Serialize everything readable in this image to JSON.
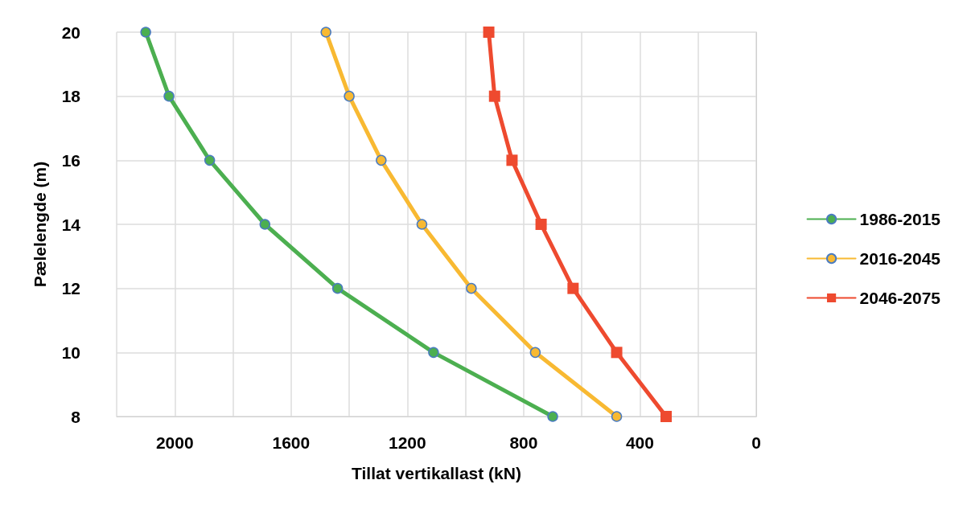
{
  "chart_data": {
    "type": "line",
    "xlabel": "Tillat vertikallast (kN)",
    "ylabel": "Pælelengde (m)",
    "xlim": [
      2200,
      0
    ],
    "xticks": [
      {
        "value": 2200,
        "label": null
      },
      2000,
      {
        "value": 1800,
        "label": null
      },
      1600,
      {
        "value": 1400,
        "label": null
      },
      1200,
      {
        "value": 1000,
        "label": null
      },
      800,
      {
        "value": 600,
        "label": null
      },
      400,
      {
        "value": 200,
        "label": null
      },
      0
    ],
    "ylim": [
      8,
      20
    ],
    "yticks": [
      8,
      10,
      12,
      14,
      16,
      18,
      20
    ],
    "grid": true,
    "legend": "right",
    "line_style": "solid",
    "series": [
      {
        "name": "1986-2015",
        "color": "#4caf50",
        "marker": "circle",
        "x": [
          2100,
          2020,
          1880,
          1690,
          1440,
          1110,
          700
        ],
        "values": [
          20,
          18,
          16,
          14,
          12,
          10,
          8
        ]
      },
      {
        "name": "2016-2045",
        "color": "#f8b932",
        "marker": "circle",
        "x": [
          1480,
          1400,
          1290,
          1150,
          980,
          760,
          480
        ],
        "values": [
          20,
          18,
          16,
          14,
          12,
          10,
          8
        ]
      },
      {
        "name": "2046-2075",
        "color": "#ee4a2f",
        "marker": "square",
        "x": [
          920,
          900,
          840,
          740,
          630,
          480,
          310
        ],
        "values": [
          20,
          18,
          16,
          14,
          12,
          10,
          8
        ]
      }
    ]
  }
}
